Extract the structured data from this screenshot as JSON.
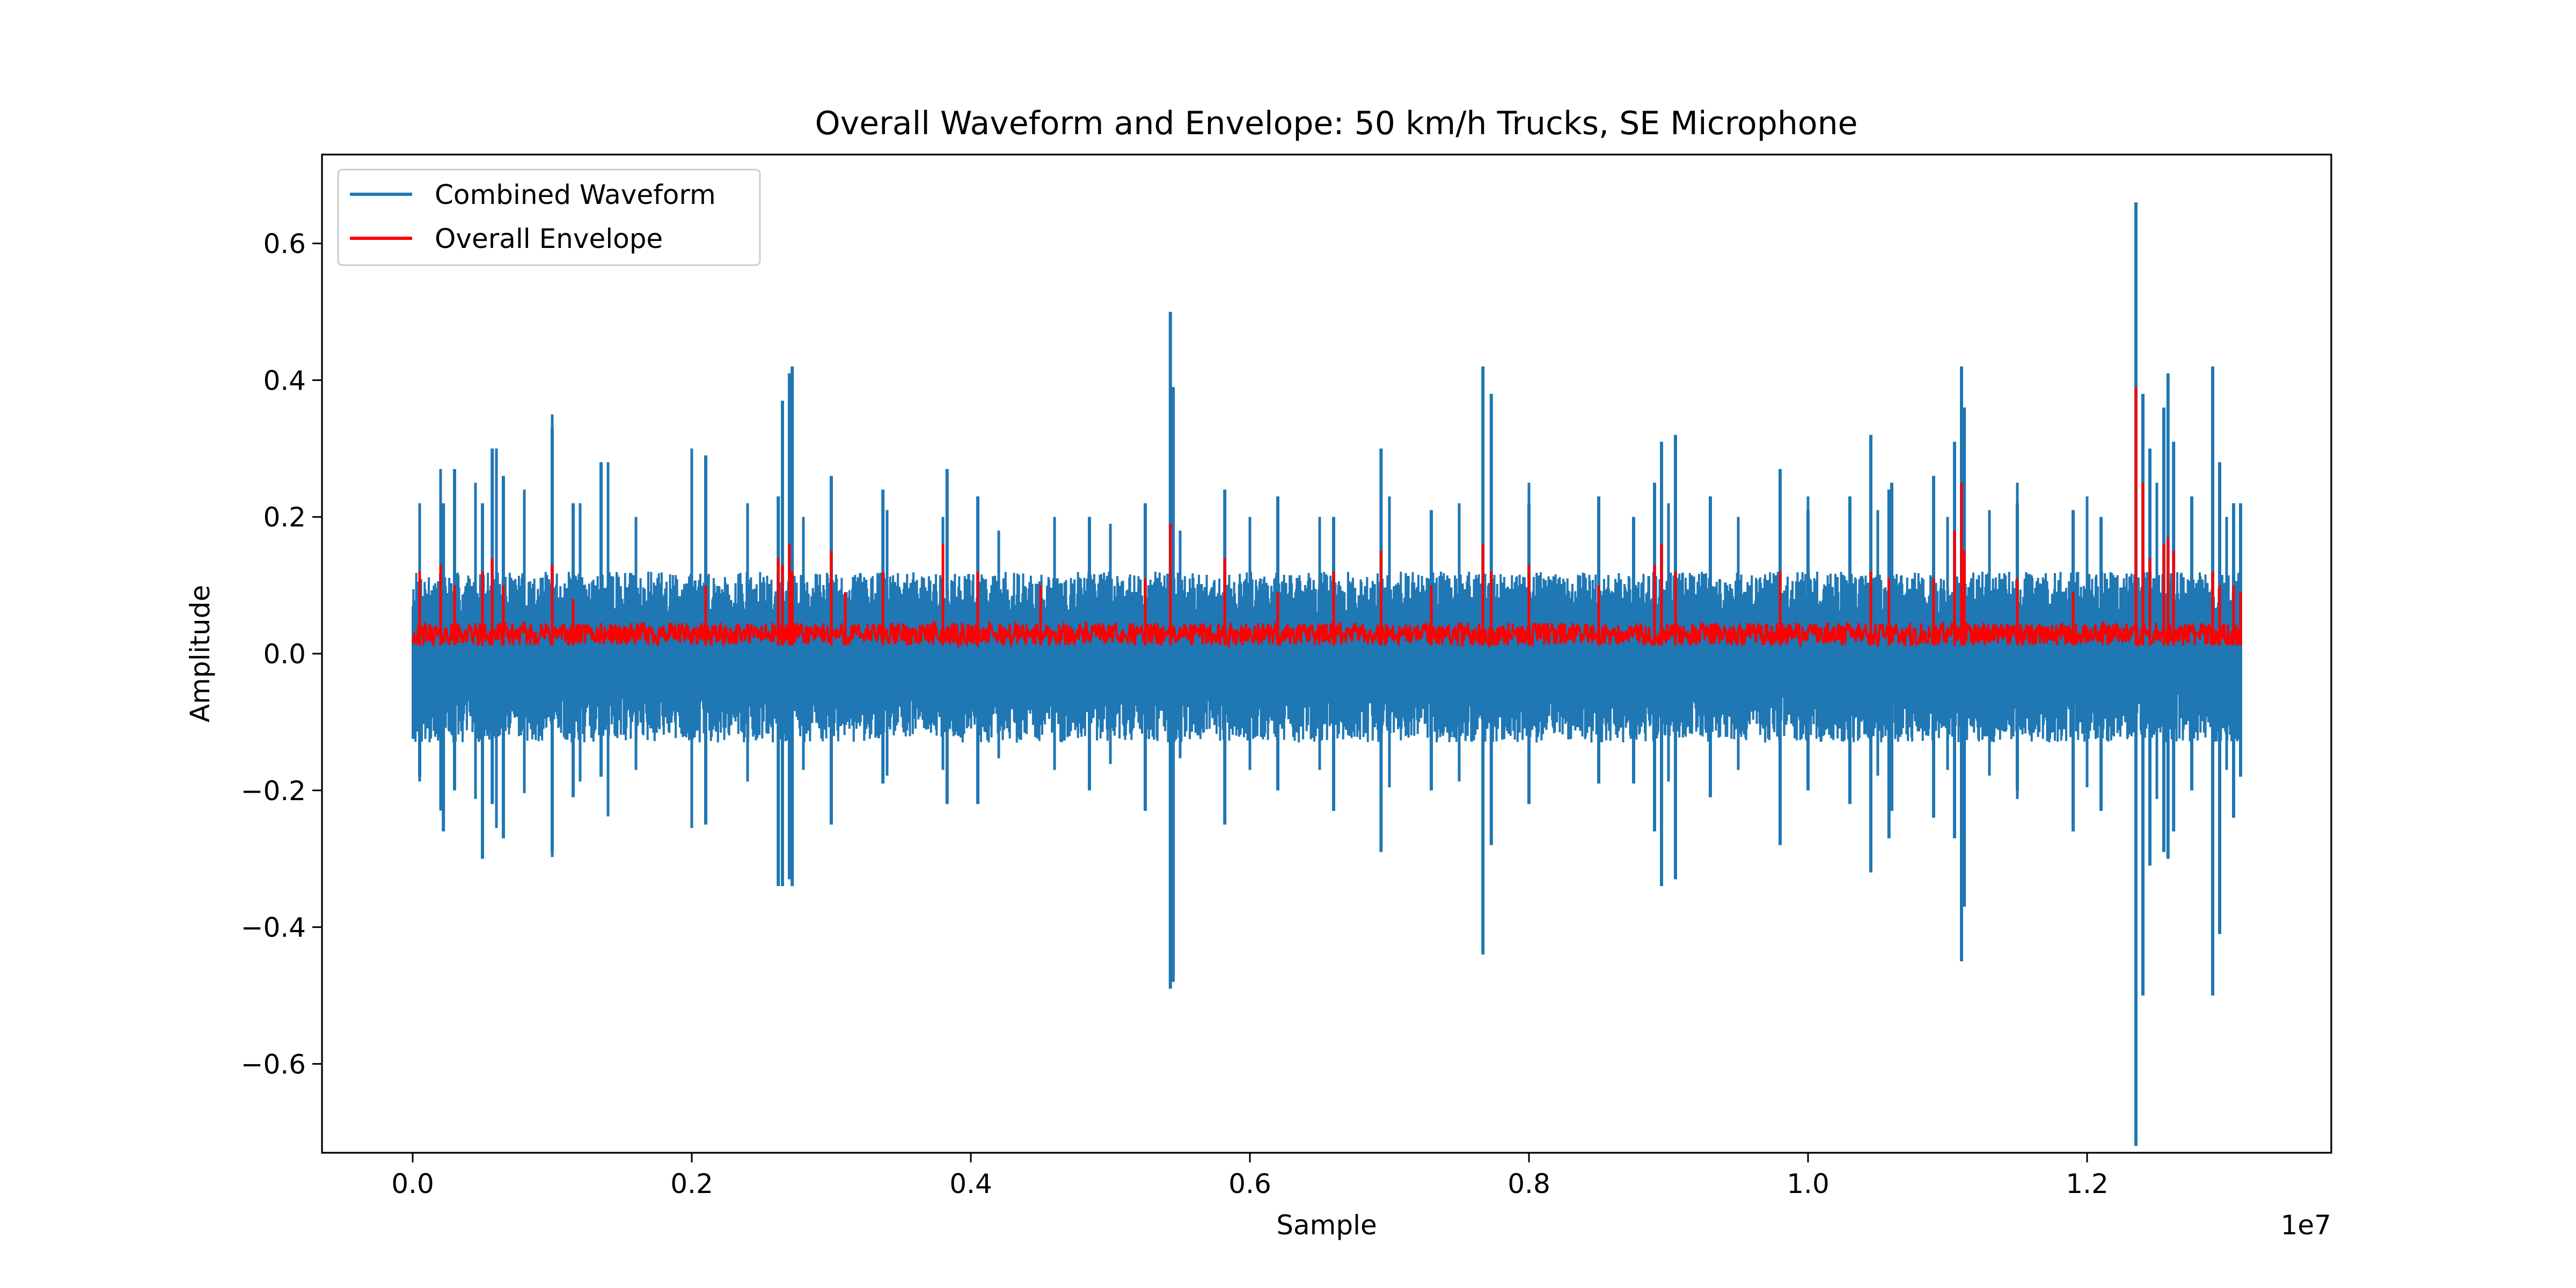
{
  "chart_data": {
    "type": "line",
    "title": "Overall Waveform and Envelope: 50 km/h Trucks, SE Microphone",
    "xlabel": "Sample",
    "ylabel": "Amplitude",
    "x_offset_text": "1e7",
    "xlim": [
      -0.065,
      1.375
    ],
    "ylim": [
      -0.73,
      0.73
    ],
    "x_ticks": [
      0.0,
      0.2,
      0.4,
      0.6,
      0.8,
      1.0,
      1.2
    ],
    "x_tick_labels": [
      "0.0",
      "0.2",
      "0.4",
      "0.6",
      "0.8",
      "1.0",
      "1.2"
    ],
    "y_ticks": [
      -0.6,
      -0.4,
      -0.2,
      0.0,
      0.2,
      0.4,
      0.6
    ],
    "y_tick_labels": [
      "−0.6",
      "−0.4",
      "−0.2",
      "0.0",
      "0.2",
      "0.4",
      "0.6"
    ],
    "grid": false,
    "legend": "top-left",
    "series": [
      {
        "name": "Combined Waveform",
        "color": "#1f77b4",
        "x_range": [
          0.0,
          1.31
        ],
        "baseline_max": 0.12,
        "baseline_min": -0.13,
        "peaks_max": [
          [
            0.005,
            0.22
          ],
          [
            0.02,
            0.27
          ],
          [
            0.045,
            0.25
          ],
          [
            0.06,
            0.3
          ],
          [
            0.08,
            0.24
          ],
          [
            0.1,
            0.35
          ],
          [
            0.12,
            0.22
          ],
          [
            0.14,
            0.28
          ],
          [
            0.16,
            0.2
          ],
          [
            0.2,
            0.3
          ],
          [
            0.24,
            0.22
          ],
          [
            0.28,
            0.2
          ],
          [
            0.3,
            0.23
          ],
          [
            0.34,
            0.21
          ],
          [
            0.38,
            0.2
          ],
          [
            0.42,
            0.18
          ],
          [
            0.46,
            0.2
          ],
          [
            0.5,
            0.19
          ],
          [
            0.55,
            0.18
          ],
          [
            0.6,
            0.2
          ],
          [
            0.65,
            0.2
          ],
          [
            0.7,
            0.23
          ],
          [
            0.75,
            0.22
          ],
          [
            0.8,
            0.25
          ],
          [
            0.85,
            0.21
          ],
          [
            0.9,
            0.22
          ],
          [
            0.95,
            0.2
          ],
          [
            1.0,
            0.23
          ],
          [
            1.05,
            0.21
          ],
          [
            1.1,
            0.2
          ],
          [
            1.13,
            0.21
          ],
          [
            1.15,
            0.25
          ],
          [
            1.2,
            0.23
          ],
          [
            1.25,
            0.25
          ],
          [
            1.3,
            0.2
          ]
        ],
        "spikes": [
          [
            0.005,
            0.06,
            -0.18
          ],
          [
            0.022,
            0.22,
            -0.26
          ],
          [
            0.03,
            0.27,
            -0.2
          ],
          [
            0.05,
            0.22,
            -0.3
          ],
          [
            0.057,
            0.3,
            -0.22
          ],
          [
            0.065,
            0.26,
            -0.27
          ],
          [
            0.1,
            0.33,
            -0.26
          ],
          [
            0.1,
            0.32,
            -0.29
          ],
          [
            0.115,
            0.22,
            -0.21
          ],
          [
            0.135,
            0.28,
            -0.18
          ],
          [
            0.21,
            0.29,
            -0.25
          ],
          [
            0.262,
            0.23,
            -0.34
          ],
          [
            0.265,
            0.37,
            -0.34
          ],
          [
            0.27,
            0.41,
            -0.33
          ],
          [
            0.272,
            0.42,
            -0.34
          ],
          [
            0.3,
            0.26,
            -0.25
          ],
          [
            0.337,
            0.24,
            -0.19
          ],
          [
            0.383,
            0.27,
            -0.22
          ],
          [
            0.405,
            0.23,
            -0.22
          ],
          [
            0.485,
            0.2,
            -0.2
          ],
          [
            0.525,
            0.22,
            -0.23
          ],
          [
            0.543,
            0.5,
            -0.49
          ],
          [
            0.545,
            0.39,
            -0.48
          ],
          [
            0.582,
            0.24,
            -0.25
          ],
          [
            0.62,
            0.23,
            -0.2
          ],
          [
            0.66,
            0.2,
            -0.23
          ],
          [
            0.694,
            0.3,
            -0.29
          ],
          [
            0.73,
            0.21,
            -0.2
          ],
          [
            0.767,
            0.42,
            -0.44
          ],
          [
            0.773,
            0.38,
            -0.28
          ],
          [
            0.8,
            0.22,
            -0.22
          ],
          [
            0.85,
            0.23,
            -0.19
          ],
          [
            0.875,
            0.2,
            -0.19
          ],
          [
            0.89,
            0.25,
            -0.26
          ],
          [
            0.895,
            0.31,
            -0.34
          ],
          [
            0.905,
            0.32,
            -0.33
          ],
          [
            0.93,
            0.23,
            -0.21
          ],
          [
            0.98,
            0.27,
            -0.28
          ],
          [
            1.0,
            0.21,
            -0.2
          ],
          [
            1.03,
            0.23,
            -0.22
          ],
          [
            1.045,
            0.32,
            -0.32
          ],
          [
            1.058,
            0.24,
            -0.27
          ],
          [
            1.06,
            0.25,
            -0.23
          ],
          [
            1.09,
            0.26,
            -0.24
          ],
          [
            1.105,
            0.31,
            -0.27
          ],
          [
            1.11,
            0.42,
            -0.45
          ],
          [
            1.112,
            0.36,
            -0.37
          ],
          [
            1.15,
            0.22,
            -0.2
          ],
          [
            1.19,
            0.21,
            -0.26
          ],
          [
            1.21,
            0.2,
            -0.23
          ],
          [
            1.235,
            0.66,
            -0.72
          ],
          [
            1.24,
            0.38,
            -0.5
          ],
          [
            1.245,
            0.3,
            -0.31
          ],
          [
            1.255,
            0.36,
            -0.29
          ],
          [
            1.258,
            0.41,
            -0.3
          ],
          [
            1.262,
            0.31,
            -0.26
          ],
          [
            1.275,
            0.23,
            -0.2
          ],
          [
            1.29,
            0.42,
            -0.5
          ],
          [
            1.295,
            0.28,
            -0.41
          ],
          [
            1.305,
            0.22,
            -0.24
          ],
          [
            1.31,
            0.22,
            -0.18
          ]
        ]
      },
      {
        "name": "Overall Envelope",
        "color": "#ff0000",
        "x_range": [
          0.0,
          1.31
        ],
        "baseline_max": 0.045,
        "baseline_min": 0.012,
        "spikes": [
          [
            0.005,
            0.12
          ],
          [
            0.02,
            0.13
          ],
          [
            0.03,
            0.1
          ],
          [
            0.05,
            0.12
          ],
          [
            0.057,
            0.14
          ],
          [
            0.065,
            0.1
          ],
          [
            0.1,
            0.13
          ],
          [
            0.115,
            0.08
          ],
          [
            0.21,
            0.1
          ],
          [
            0.262,
            0.14
          ],
          [
            0.265,
            0.13
          ],
          [
            0.27,
            0.16
          ],
          [
            0.272,
            0.12
          ],
          [
            0.3,
            0.15
          ],
          [
            0.31,
            0.09
          ],
          [
            0.337,
            0.12
          ],
          [
            0.38,
            0.16
          ],
          [
            0.405,
            0.12
          ],
          [
            0.45,
            0.1
          ],
          [
            0.525,
            0.11
          ],
          [
            0.543,
            0.19
          ],
          [
            0.582,
            0.14
          ],
          [
            0.62,
            0.09
          ],
          [
            0.66,
            0.12
          ],
          [
            0.694,
            0.15
          ],
          [
            0.73,
            0.1
          ],
          [
            0.767,
            0.16
          ],
          [
            0.773,
            0.12
          ],
          [
            0.8,
            0.13
          ],
          [
            0.85,
            0.1
          ],
          [
            0.89,
            0.13
          ],
          [
            0.895,
            0.16
          ],
          [
            0.905,
            0.12
          ],
          [
            0.98,
            0.12
          ],
          [
            1.045,
            0.12
          ],
          [
            1.058,
            0.11
          ],
          [
            1.09,
            0.11
          ],
          [
            1.105,
            0.18
          ],
          [
            1.11,
            0.25
          ],
          [
            1.112,
            0.15
          ],
          [
            1.15,
            0.11
          ],
          [
            1.19,
            0.09
          ],
          [
            1.235,
            0.39
          ],
          [
            1.24,
            0.25
          ],
          [
            1.245,
            0.14
          ],
          [
            1.255,
            0.16
          ],
          [
            1.258,
            0.17
          ],
          [
            1.262,
            0.15
          ],
          [
            1.29,
            0.12
          ],
          [
            1.295,
            0.1
          ],
          [
            1.305,
            0.1
          ],
          [
            1.31,
            0.09
          ]
        ]
      }
    ]
  }
}
